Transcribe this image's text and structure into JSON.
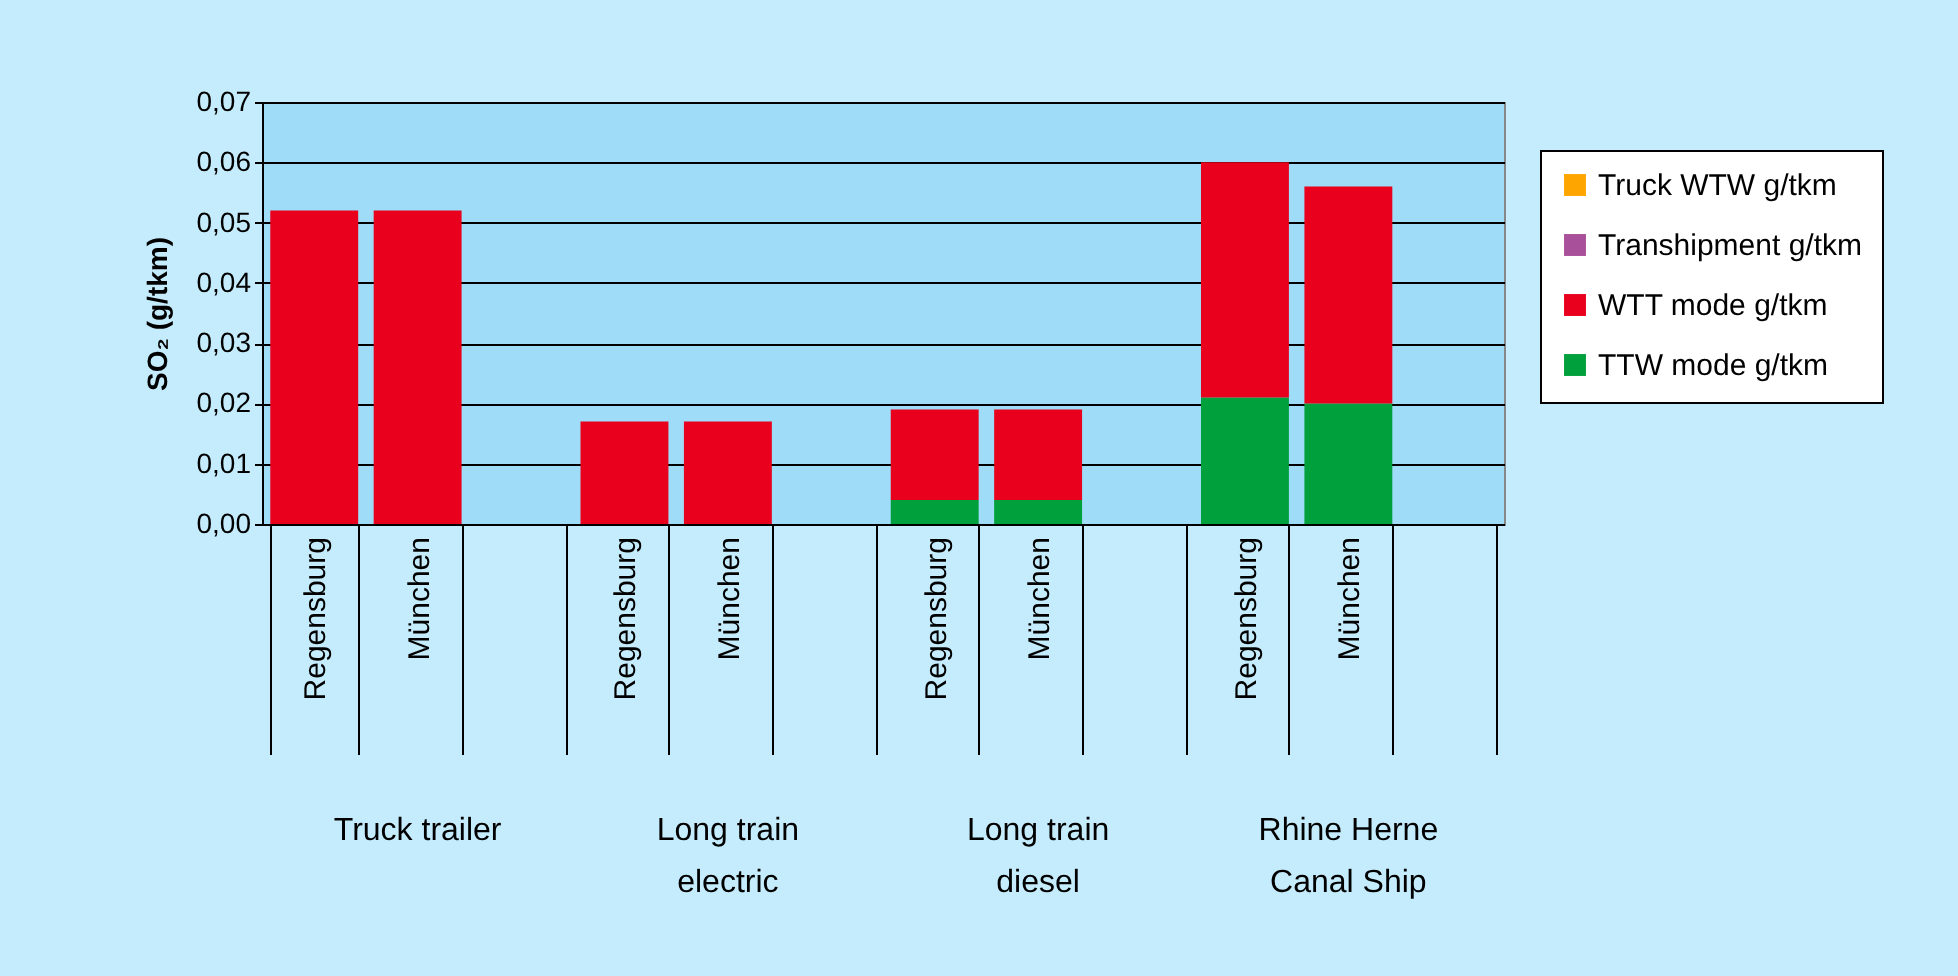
{
  "chart_data": {
    "type": "bar",
    "stacked": true,
    "ylabel": "SO₂ (g/tkm)",
    "categories": [
      "Regensburg",
      "München",
      null,
      "Regensburg",
      "München",
      null,
      "Regensburg",
      "München",
      null,
      "Regensburg",
      "München",
      null
    ],
    "annotations": [
      "Truck trailer",
      "Long train electric",
      "Long train diesel",
      "Rhine Herne Canal Ship"
    ],
    "series": [
      {
        "name": "TTW mode g/tkm",
        "color": "#00a03c",
        "values": [
          null,
          null,
          null,
          null,
          null,
          null,
          0.004,
          0.004,
          null,
          0.021,
          0.02,
          null
        ]
      },
      {
        "name": "WTT mode g/tkm",
        "color": "#e8001c",
        "values": [
          0.052,
          0.052,
          null,
          0.017,
          0.017,
          null,
          0.015,
          0.015,
          null,
          0.039,
          0.036,
          null
        ]
      },
      {
        "name": "Transhipment g/tkm",
        "color": "#a8509a",
        "values": [
          null,
          null,
          null,
          null,
          null,
          null,
          null,
          null,
          null,
          null,
          null,
          null
        ]
      },
      {
        "name": "Truck WTW g/tkm",
        "color": "#ffa500",
        "values": [
          null,
          null,
          null,
          null,
          null,
          null,
          null,
          null,
          null,
          null,
          null,
          null
        ]
      }
    ],
    "ylim": [
      0,
      0.07
    ],
    "yticks": [
      {
        "value": 0,
        "label": "0,00"
      },
      {
        "value": 0.01,
        "label": "0,01"
      },
      {
        "value": 0.02,
        "label": "0,02"
      },
      {
        "value": 0.03,
        "label": "0,03"
      },
      {
        "value": 0.04,
        "label": "0,04"
      },
      {
        "value": 0.05,
        "label": "0,05"
      },
      {
        "value": 0.06,
        "label": "0,06"
      },
      {
        "value": 0.07,
        "label": "0,07"
      }
    ],
    "grid": "y",
    "legend": "right"
  }
}
